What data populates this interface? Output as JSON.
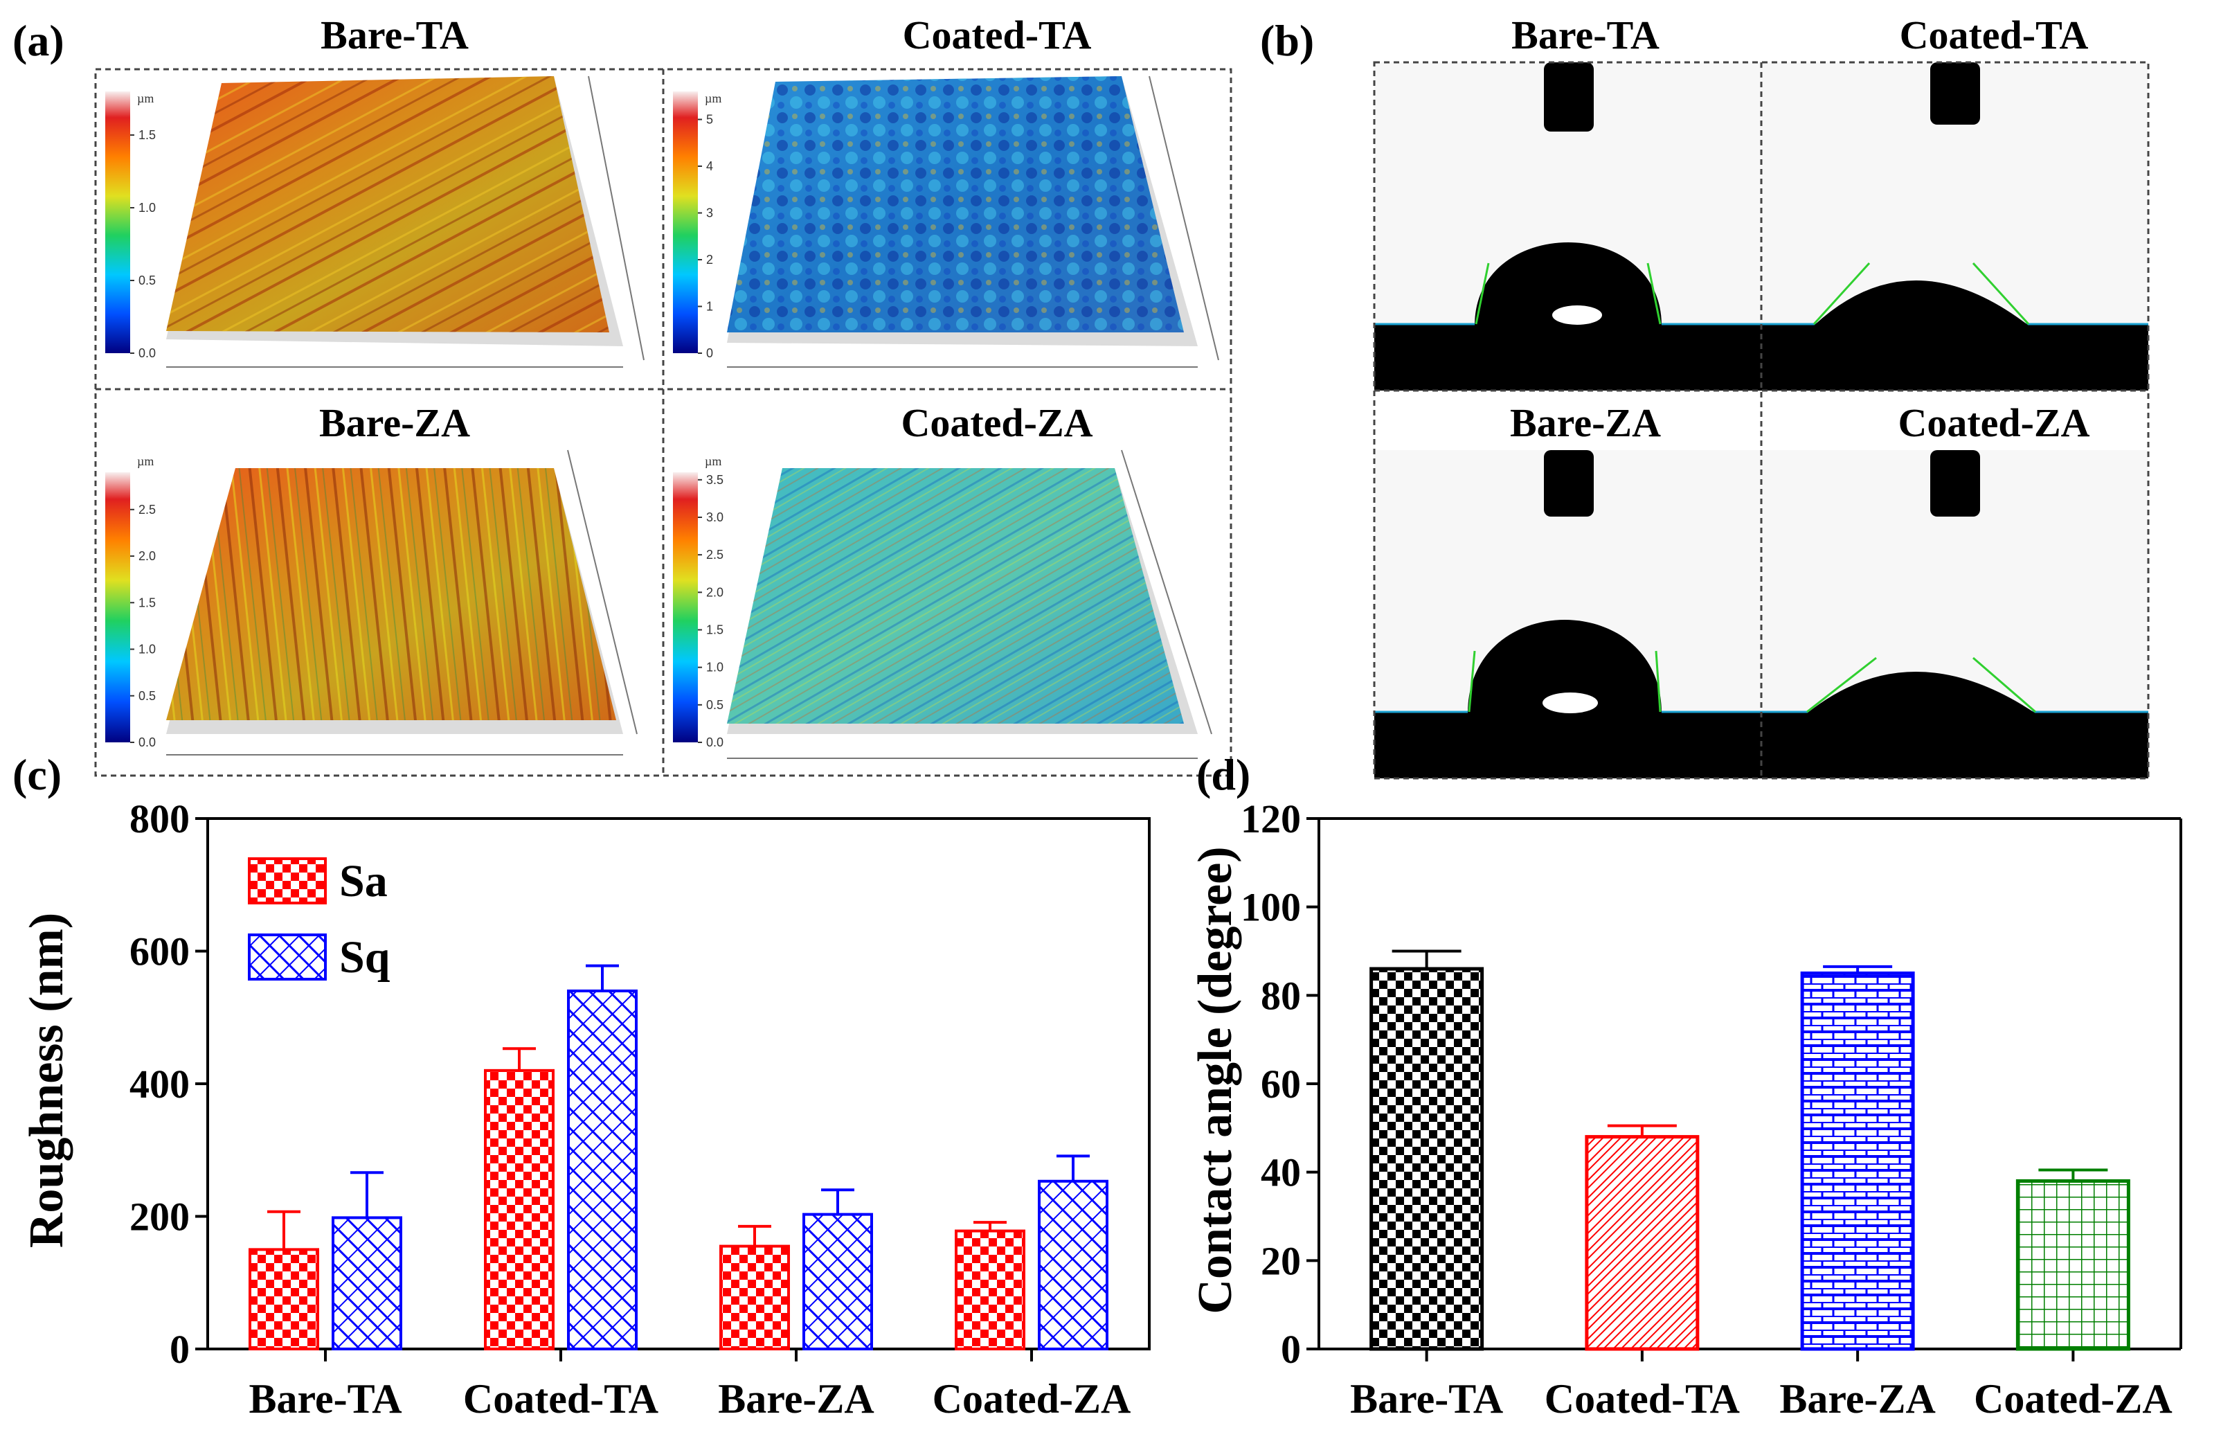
{
  "panel_labels": {
    "a": "(a)",
    "b": "(b)",
    "c": "(c)",
    "d": "(d)"
  },
  "panel_a": {
    "images": [
      {
        "title": "Bare-TA",
        "unit": "µm",
        "scale_ticks": [
          "0.0",
          "0.5",
          "1.0",
          "1.5"
        ],
        "scale_max": 1.8,
        "palette": "warm"
      },
      {
        "title": "Coated-TA",
        "unit": "µm",
        "scale_ticks": [
          "0",
          "1",
          "2",
          "3",
          "4",
          "5"
        ],
        "scale_max": 5.6,
        "palette": "cool"
      },
      {
        "title": "Bare-ZA",
        "unit": "µm",
        "scale_ticks": [
          "0.0",
          "0.5",
          "1.0",
          "1.5",
          "2.0",
          "2.5"
        ],
        "scale_max": 2.9,
        "palette": "warm-striped"
      },
      {
        "title": "Coated-ZA",
        "unit": "µm",
        "scale_ticks": [
          "0.0",
          "0.5",
          "1.0",
          "1.5",
          "2.0",
          "2.5",
          "3.0",
          "3.5"
        ],
        "scale_max": 3.6,
        "palette": "cool-striped"
      }
    ]
  },
  "panel_b": {
    "images": [
      {
        "title": "Bare-TA"
      },
      {
        "title": "Coated-TA"
      },
      {
        "title": "Bare-ZA"
      },
      {
        "title": "Coated-ZA"
      }
    ]
  },
  "chart_data": [
    {
      "panel": "c",
      "type": "bar",
      "categories": [
        "Bare-TA",
        "Coated-TA",
        "Bare-ZA",
        "Coated-ZA"
      ],
      "series": [
        {
          "name": "Sa",
          "values": [
            150,
            420,
            155,
            178
          ],
          "errors": [
            57,
            33,
            30,
            13
          ],
          "color": "#ff0000",
          "pattern": "checker"
        },
        {
          "name": "Sq",
          "values": [
            198,
            540,
            203,
            253
          ],
          "errors": [
            68,
            38,
            37,
            38
          ],
          "color": "#0000ff",
          "pattern": "hatch"
        }
      ],
      "ylabel": "Roughness (nm)",
      "ylim": [
        0,
        800
      ],
      "yticks": [
        0,
        200,
        400,
        600,
        800
      ],
      "legend": "top-left",
      "grid": false
    },
    {
      "panel": "d",
      "type": "bar",
      "categories": [
        "Bare-TA",
        "Coated-TA",
        "Bare-ZA",
        "Coated-ZA"
      ],
      "values": [
        86,
        48,
        85,
        38
      ],
      "errors": [
        4,
        2.5,
        1.5,
        2.5
      ],
      "colors": [
        "#000000",
        "#ff0000",
        "#0000ff",
        "#007f00"
      ],
      "patterns": [
        "checker",
        "diag",
        "brick",
        "grid"
      ],
      "ylabel": "Contact angle (degree)",
      "ylim": [
        0,
        120
      ],
      "yticks": [
        0,
        20,
        40,
        60,
        80,
        100,
        120
      ],
      "grid": false
    }
  ]
}
